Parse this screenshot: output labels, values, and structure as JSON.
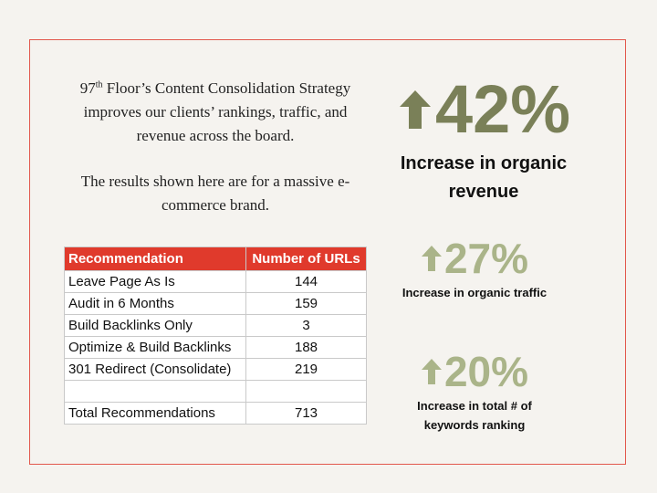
{
  "intro": {
    "line1_prefix": "97",
    "line1_sup": "th",
    "line1_suffix": " Floor’s Content Consolidation Strategy improves our clients’ rankings, traffic, and revenue across the board.",
    "line2": "The results shown here are for a massive e-commerce brand."
  },
  "table": {
    "headers": [
      "Recommendation",
      "Number of URLs"
    ],
    "rows": [
      {
        "label": "Leave Page As Is",
        "value": "144"
      },
      {
        "label": "Audit in 6 Months",
        "value": "159"
      },
      {
        "label": "Build Backlinks Only",
        "value": "3"
      },
      {
        "label": "Optimize & Build Backlinks",
        "value": "188"
      },
      {
        "label": "301 Redirect (Consolidate)",
        "value": "219"
      },
      {
        "label": "",
        "value": ""
      }
    ],
    "total": {
      "label": "Total Recommendations",
      "value": "713"
    }
  },
  "stats": {
    "revenue": {
      "value": "42%",
      "caption": "Increase in organic revenue"
    },
    "traffic": {
      "value": "27%",
      "caption": "Increase in organic traffic"
    },
    "keywords": {
      "value": "20%",
      "caption": "Increase in total # of keywords ranking"
    }
  },
  "colors": {
    "frame_border": "#e2574c",
    "header_bg": "#e03a2c",
    "primary_stat": "#7a8058",
    "secondary_stat": "#aab489"
  },
  "icons": {
    "stat_arrow": "arrow-up-icon"
  }
}
